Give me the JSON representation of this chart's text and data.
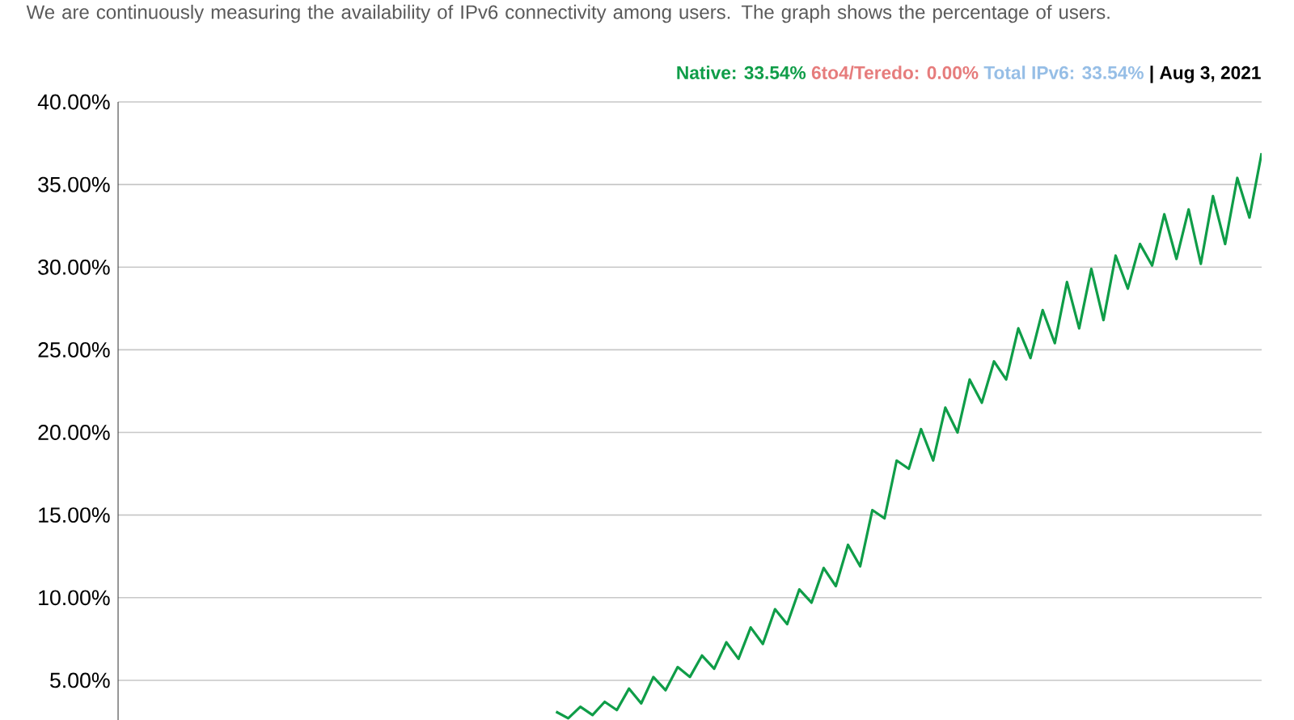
{
  "chart_data": {
    "type": "line",
    "subtitle": "We are continuously measuring the availability of IPv6 connectivity among users. The graph shows the percentage of users.",
    "annotations": [
      "Native: 33.54%",
      "6to4/Teredo: 0.00%",
      "Total IPv6: 33.54%",
      "| Aug 3, 2021"
    ],
    "categories": [
      null,
      null,
      null,
      null,
      null,
      null,
      null,
      null,
      null,
      null,
      null,
      null,
      null,
      null,
      null,
      null,
      null,
      null,
      null,
      null,
      null,
      null,
      null,
      null,
      null,
      null,
      null,
      null,
      null,
      null,
      null,
      null,
      null,
      null,
      null,
      null,
      null,
      null,
      null,
      null,
      null,
      null,
      null,
      null,
      null,
      null,
      null,
      null,
      null,
      null,
      null,
      null,
      null,
      null,
      null,
      null,
      null,
      null,
      null,
      null,
      null,
      null,
      null,
      null,
      null,
      null,
      null,
      null,
      null,
      null,
      null,
      null,
      null,
      null,
      null,
      null,
      null,
      null,
      null,
      null,
      null,
      null,
      null,
      null,
      null,
      null,
      null,
      null,
      null,
      null,
      null,
      null,
      null,
      null,
      null
    ],
    "series": [
      {
        "color": "#0f9d48",
        "values": [
          null,
          null,
          null,
          null,
          null,
          null,
          null,
          null,
          null,
          null,
          null,
          null,
          null,
          null,
          null,
          null,
          null,
          null,
          null,
          null,
          null,
          null,
          null,
          null,
          null,
          null,
          null,
          null,
          null,
          null,
          null,
          null,
          null,
          null,
          null,
          null,
          3.1,
          2.7,
          3.4,
          2.9,
          3.7,
          3.2,
          4.5,
          3.6,
          5.2,
          4.4,
          5.8,
          5.2,
          6.5,
          5.7,
          7.3,
          6.3,
          8.2,
          7.2,
          9.3,
          8.4,
          10.5,
          9.7,
          11.8,
          10.7,
          13.2,
          11.9,
          15.3,
          14.8,
          18.3,
          17.8,
          20.2,
          18.3,
          21.5,
          20.0,
          23.2,
          21.8,
          24.3,
          23.2,
          26.3,
          24.5,
          27.4,
          25.4,
          29.1,
          26.3,
          29.9,
          26.8,
          30.7,
          28.7,
          31.4,
          30.1,
          33.2,
          30.5,
          33.5,
          30.2,
          34.3,
          31.4,
          35.4,
          33.0,
          36.9
        ]
      }
    ],
    "ylim": [
      2.6,
      40
    ],
    "yticks": [
      {
        "value": 5,
        "label": "5.00%"
      },
      {
        "value": 10,
        "label": "10.00%"
      },
      {
        "value": 15,
        "label": "15.00%"
      },
      {
        "value": 20,
        "label": "20.00%"
      },
      {
        "value": 25,
        "label": "25.00%"
      },
      {
        "value": 30,
        "label": "30.00%"
      },
      {
        "value": 35,
        "label": "35.00%"
      },
      {
        "value": 40,
        "label": "40.00%"
      }
    ],
    "tick_labels": "y",
    "grid": "y",
    "marker": "none",
    "line_style": "solid"
  }
}
